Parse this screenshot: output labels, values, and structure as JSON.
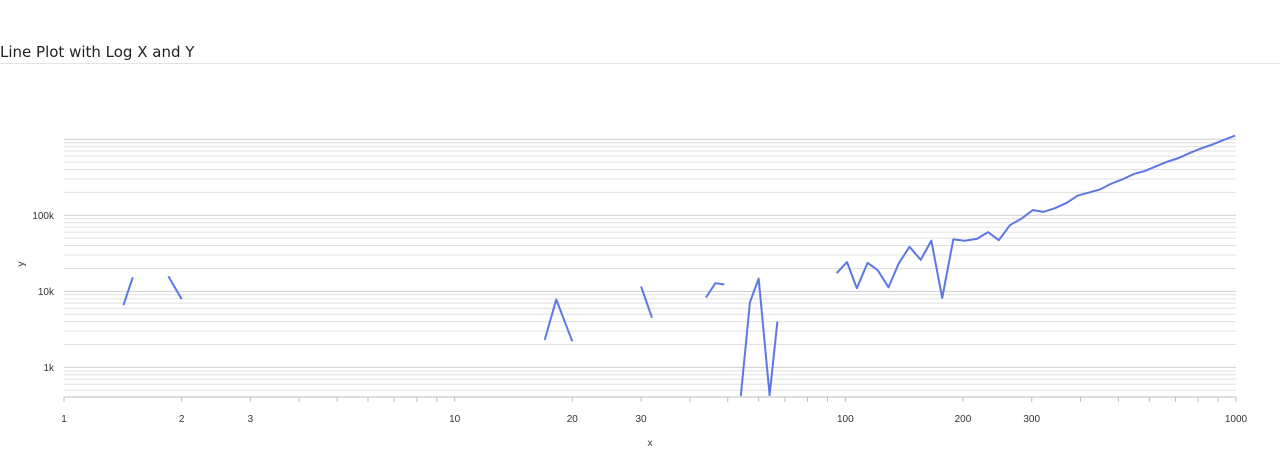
{
  "title": "Line Plot with Log X and Y",
  "chart_data": {
    "type": "line",
    "title": "Line Plot with Log X and Y",
    "xlabel": "x",
    "ylabel": "y",
    "x_scale": "log",
    "y_scale": "log",
    "xlim": [
      1,
      1000
    ],
    "ylim": [
      420,
      1450000
    ],
    "grid": "horizontal",
    "legend": "none",
    "line_color": "#5b78e5",
    "x_ticks": [
      {
        "value": 1,
        "label": "1"
      },
      {
        "value": 2,
        "label": "2"
      },
      {
        "value": 3,
        "label": "3"
      },
      {
        "value": 10,
        "label": "10"
      },
      {
        "value": 20,
        "label": "20"
      },
      {
        "value": 30,
        "label": "30"
      },
      {
        "value": 100,
        "label": "100"
      },
      {
        "value": 200,
        "label": "200"
      },
      {
        "value": 300,
        "label": "300"
      },
      {
        "value": 1000,
        "label": "1000"
      }
    ],
    "y_ticks": [
      {
        "value": 1000,
        "label": "1k"
      },
      {
        "value": 10000,
        "label": "10k"
      },
      {
        "value": 100000,
        "label": "100k"
      }
    ],
    "segments": [
      [
        [
          1.42,
          6600
        ],
        [
          1.5,
          15300
        ]
      ],
      [
        [
          1.85,
          15800
        ],
        [
          2.0,
          7900
        ]
      ],
      [
        [
          17.0,
          2300
        ],
        [
          18.2,
          7800
        ],
        [
          20.0,
          2200
        ]
      ],
      [
        [
          30.0,
          11600
        ],
        [
          32.0,
          4500
        ]
      ],
      [
        [
          44.0,
          8300
        ],
        [
          46.5,
          12800
        ],
        [
          49.0,
          12300
        ]
      ],
      [
        [
          54.0,
          420
        ],
        [
          57.0,
          7200
        ],
        [
          60.0,
          14700
        ],
        [
          64.0,
          430
        ],
        [
          67.0,
          4000
        ]
      ],
      [
        [
          95.0,
          17300
        ],
        [
          101.0,
          24300
        ],
        [
          107.0,
          11000
        ],
        [
          114.0,
          23700
        ],
        [
          121.0,
          19000
        ],
        [
          129.0,
          11300
        ],
        [
          137.0,
          23300
        ],
        [
          146.0,
          38500
        ],
        [
          156.0,
          25900
        ],
        [
          166.0,
          46400
        ],
        [
          177.0,
          8200
        ],
        [
          189.0,
          48300
        ],
        [
          202.0,
          46300
        ],
        [
          217.0,
          49000
        ],
        [
          232.0,
          60000
        ],
        [
          247.0,
          47000
        ],
        [
          264.0,
          74400
        ],
        [
          282.0,
          90000
        ],
        [
          302.0,
          117000
        ],
        [
          322.0,
          111000
        ],
        [
          344.0,
          124000
        ],
        [
          368.0,
          145000
        ],
        [
          393.0,
          181000
        ],
        [
          420.0,
          199000
        ],
        [
          449.0,
          219000
        ],
        [
          479.0,
          260000
        ],
        [
          512.0,
          297000
        ],
        [
          548.0,
          350000
        ],
        [
          585.0,
          383000
        ],
        [
          625.0,
          442000
        ],
        [
          668.0,
          508000
        ],
        [
          714.0,
          567000
        ],
        [
          763.0,
          664000
        ],
        [
          815.0,
          759000
        ],
        [
          871.0,
          855000
        ],
        [
          931.0,
          982000
        ],
        [
          995.0,
          1120000
        ]
      ]
    ]
  }
}
